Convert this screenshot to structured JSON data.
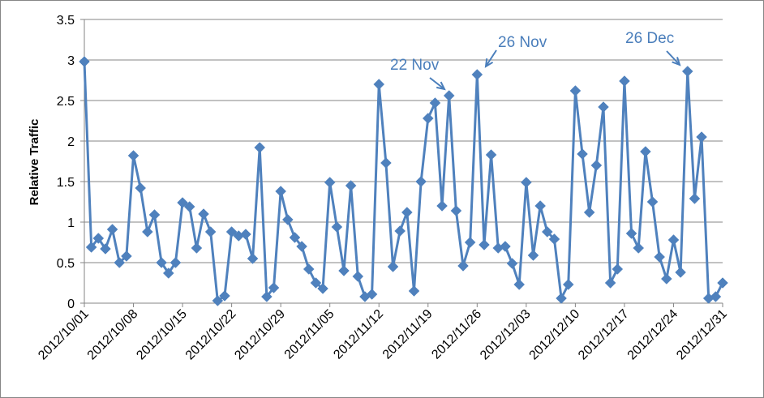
{
  "chart_data": {
    "type": "line",
    "title": "",
    "xlabel": "",
    "ylabel": "Relative Traffic",
    "ylim": [
      0,
      3.5
    ],
    "yticks": [
      "0",
      "0.5",
      "1",
      "1.5",
      "2",
      "2.5",
      "3",
      "3.5"
    ],
    "xticks": [
      "2012/10/01",
      "2012/10/08",
      "2012/10/15",
      "2012/10/22",
      "2012/10/29",
      "2012/11/05",
      "2012/11/12",
      "2012/11/19",
      "2012/11/26",
      "2012/12/03",
      "2012/12/10",
      "2012/12/17",
      "2012/12/24",
      "2012/12/31"
    ],
    "x_start": "2012/10/01",
    "x_end": "2012/12/31",
    "grid": "horizontal",
    "legend": "none",
    "series_color": "#4f81bd",
    "annotation_color": "#4a7ebb",
    "series": [
      {
        "values": [
          2.98,
          0.69,
          0.8,
          0.67,
          0.91,
          0.5,
          0.58,
          1.82,
          1.42,
          0.88,
          1.09,
          0.5,
          0.37,
          0.5,
          1.24,
          1.19,
          0.68,
          1.1,
          0.88,
          0.03,
          0.09,
          0.88,
          0.83,
          0.85,
          0.55,
          1.92,
          0.08,
          0.19,
          1.38,
          1.03,
          0.81,
          0.7,
          0.42,
          0.25,
          0.18,
          1.49,
          0.94,
          0.4,
          1.45,
          0.33,
          0.08,
          0.11,
          2.7,
          1.73,
          0.45,
          0.89,
          1.12,
          0.15,
          1.5,
          2.28,
          2.47,
          1.2,
          2.56,
          1.14,
          0.46,
          0.75,
          2.82,
          0.72,
          1.83,
          0.68,
          0.7,
          0.49,
          0.23,
          1.49,
          0.59,
          1.2,
          0.88,
          0.79,
          0.06,
          0.23,
          2.62,
          1.84,
          1.12,
          1.7,
          2.42,
          0.25,
          0.42,
          2.74,
          0.86,
          0.68,
          1.87,
          1.25,
          0.57,
          0.3,
          0.78,
          0.38,
          2.86,
          1.29,
          2.05,
          0.06,
          0.08,
          0.25
        ]
      }
    ],
    "annotations": [
      {
        "text": "22 Nov"
      },
      {
        "text": "26 Nov"
      },
      {
        "text": "26 Dec"
      }
    ]
  }
}
